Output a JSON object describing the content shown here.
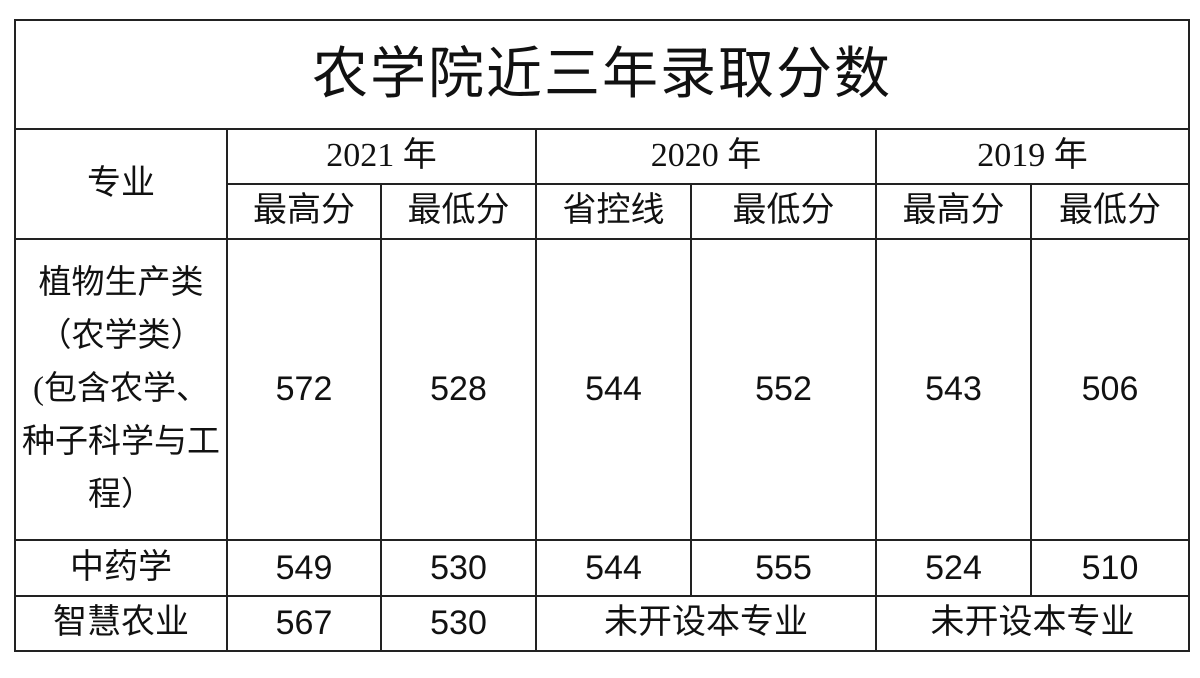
{
  "title": "农学院近三年录取分数",
  "header": {
    "major": "专业",
    "years": [
      "2021 年",
      "2020 年",
      "2019 年"
    ],
    "sub": [
      "最高分",
      "最低分",
      "省控线",
      "最低分",
      "最高分",
      "最低分"
    ]
  },
  "rows": [
    {
      "name": "植物生产类（农学类）(包含农学、种子科学与工程）",
      "values": [
        "572",
        "528",
        "544",
        "552",
        "543",
        "506"
      ]
    },
    {
      "name": "中药学",
      "values": [
        "549",
        "530",
        "544",
        "555",
        "524",
        "510"
      ]
    },
    {
      "name": "智慧农业",
      "values": [
        "567",
        "530"
      ],
      "note_2020": "未开设本专业",
      "note_2019": "未开设本专业"
    }
  ]
}
